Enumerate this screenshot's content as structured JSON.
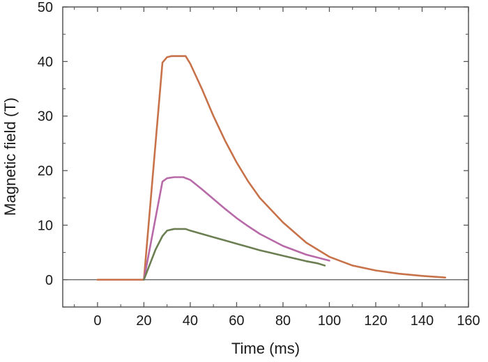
{
  "chart_data": {
    "type": "line",
    "title": "",
    "xlabel": "Time (ms)",
    "ylabel": "Magnetic field (T)",
    "xlim": [
      -15,
      160
    ],
    "ylim": [
      -5,
      50
    ],
    "x_ticks": [
      0,
      20,
      40,
      60,
      80,
      100,
      120,
      140,
      160
    ],
    "y_ticks": [
      0,
      10,
      20,
      30,
      40,
      50
    ],
    "x_tick_labels": [
      "0",
      "20",
      "40",
      "60",
      "80",
      "100",
      "120",
      "140",
      "160"
    ],
    "y_tick_labels": [
      "0",
      "10",
      "20",
      "30",
      "40",
      "50"
    ],
    "grid": false,
    "reference_line_y": 0,
    "series": [
      {
        "color": "#c8724a",
        "x": [
          0,
          20,
          28,
          30,
          32,
          38,
          40,
          45,
          50,
          55,
          60,
          65,
          70,
          80,
          90,
          100,
          110,
          120,
          130,
          140,
          150
        ],
        "y": [
          0,
          0,
          39.8,
          40.8,
          41,
          41,
          39.6,
          35,
          30,
          25.5,
          21.5,
          18,
          15,
          10.5,
          6.8,
          4.2,
          2.6,
          1.7,
          1.1,
          0.7,
          0.4
        ]
      },
      {
        "color": "#b86aa8",
        "x": [
          20,
          28,
          30,
          33,
          37,
          40,
          45,
          50,
          55,
          60,
          65,
          70,
          80,
          90,
          100
        ],
        "y": [
          0,
          18,
          18.6,
          18.8,
          18.8,
          18.3,
          16.6,
          14.8,
          13,
          11.3,
          9.8,
          8.4,
          6.2,
          4.6,
          3.5
        ]
      },
      {
        "color": "#6b7f52",
        "x": [
          20,
          25,
          28,
          30,
          33,
          38,
          40,
          45,
          50,
          55,
          60,
          65,
          70,
          75,
          80,
          85,
          90,
          95,
          98
        ],
        "y": [
          0,
          5.5,
          8,
          9,
          9.3,
          9.3,
          9,
          8.4,
          7.8,
          7.2,
          6.6,
          6,
          5.4,
          4.9,
          4.4,
          3.9,
          3.4,
          3,
          2.6
        ]
      }
    ]
  }
}
